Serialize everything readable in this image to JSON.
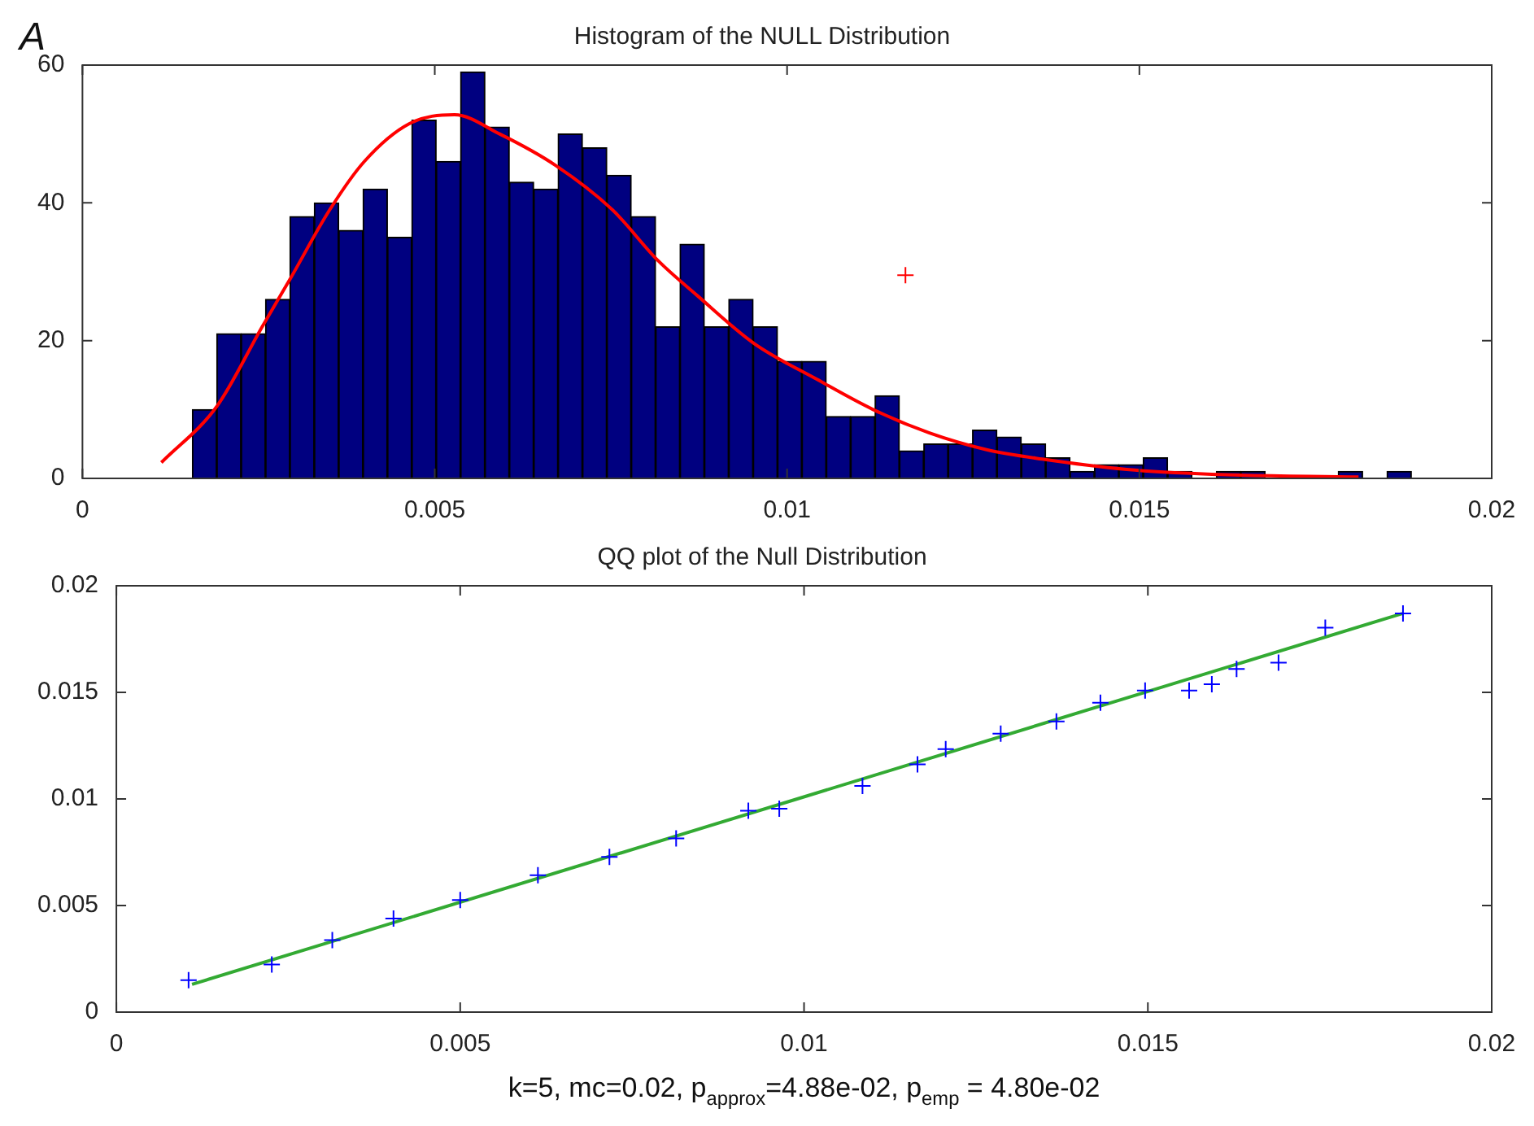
{
  "chart_data": [
    {
      "type": "histogram",
      "title": "Histogram of the NULL Distribution",
      "annotations": [
        "A"
      ],
      "xlim": [
        0,
        0.02
      ],
      "xticks": [
        0,
        0.005,
        0.01,
        0.015,
        0.02
      ],
      "ylim": [
        0,
        60
      ],
      "yticks": [
        0,
        20,
        40,
        60
      ],
      "series": [
        {
          "color": "#000080",
          "bins": [
            0.00156,
            0.001906,
            0.002252,
            0.002598,
            0.002944,
            0.00329,
            0.003636,
            0.003982,
            0.004328,
            0.004674,
            0.00502,
            0.005366,
            0.005712,
            0.006058,
            0.006404,
            0.00675,
            0.007096,
            0.007442,
            0.007788,
            0.008134,
            0.00848,
            0.008826,
            0.009172,
            0.009518,
            0.009864,
            0.01021,
            0.010556,
            0.010902,
            0.011248,
            0.011594,
            0.01194,
            0.012286,
            0.012632,
            0.012978,
            0.013324,
            0.01367,
            0.014016,
            0.014362,
            0.014708,
            0.015054,
            0.0154,
            0.015746,
            0.016092,
            0.016438,
            0.016784,
            0.01713,
            0.017476,
            0.017822,
            0.018168,
            0.018514,
            0.01886
          ],
          "values": [
            10,
            21,
            21,
            26,
            38,
            40,
            36,
            42,
            35,
            52,
            46,
            59,
            51,
            43,
            42,
            50,
            48,
            44,
            38,
            22,
            34,
            22,
            26,
            22,
            17,
            17,
            9,
            9,
            12,
            4,
            5,
            5,
            7,
            6,
            5,
            3,
            1,
            2,
            2,
            3,
            1,
            0,
            1,
            1,
            0,
            0,
            0,
            1,
            0,
            1
          ]
        },
        {
          "type": "line",
          "color": "#ff0000",
          "x": [
            0.00112,
            0.00191,
            0.00255,
            0.00295,
            0.00351,
            0.004,
            0.00464,
            0.00528,
            0.00592,
            0.00672,
            0.00752,
            0.00817,
            0.00873,
            0.00953,
            0.01042,
            0.01122,
            0.01202,
            0.01282,
            0.01362,
            0.01482,
            0.01603,
            0.01811
          ],
          "values": [
            2.3,
            10.5,
            22,
            29,
            39,
            46,
            51.5,
            52.8,
            50,
            45.4,
            39,
            31.6,
            26.5,
            19.6,
            14.4,
            10,
            6.6,
            4.2,
            2.8,
            1.3,
            0.6,
            0.2
          ]
        },
        {
          "type": "scatter",
          "color": "#ff0000",
          "marker": "cross",
          "x": [
            0.01168
          ],
          "values": [
            29.5
          ]
        }
      ]
    },
    {
      "type": "scatter",
      "title": "QQ plot of the Null Distribution",
      "xlabel": "k=5, mc=0.02, p$_{approx}$=4.88e-02, p$_{emp}$ = 4.80e-02",
      "xlim": [
        0,
        0.02
      ],
      "xticks": [
        0,
        0.005,
        0.01,
        0.015,
        0.02
      ],
      "ylim": [
        0,
        0.02
      ],
      "yticks": [
        0,
        0.005,
        0.01,
        0.015,
        0.02
      ],
      "series": [
        {
          "type": "line",
          "color": "#33aa33",
          "x": [
            0.0011,
            0.0187
          ],
          "values": [
            0.0013,
            0.0187
          ]
        },
        {
          "color": "#0000ff",
          "marker": "cross",
          "x": [
            0.00105,
            0.00226,
            0.00314,
            0.00403,
            0.005,
            0.00613,
            0.00717,
            0.00814,
            0.00919,
            0.00964,
            0.01085,
            0.01165,
            0.01206,
            0.01286,
            0.01367,
            0.01431,
            0.01496,
            0.0156,
            0.01593,
            0.01629,
            0.0169,
            0.01758,
            0.01871
          ],
          "values": [
            0.0015,
            0.00223,
            0.00338,
            0.00439,
            0.00526,
            0.00642,
            0.00728,
            0.00815,
            0.00945,
            0.00954,
            0.01061,
            0.01162,
            0.01234,
            0.01306,
            0.01364,
            0.01451,
            0.01509,
            0.01509,
            0.01538,
            0.0161,
            0.01639,
            0.01803,
            0.0187
          ]
        }
      ]
    }
  ]
}
